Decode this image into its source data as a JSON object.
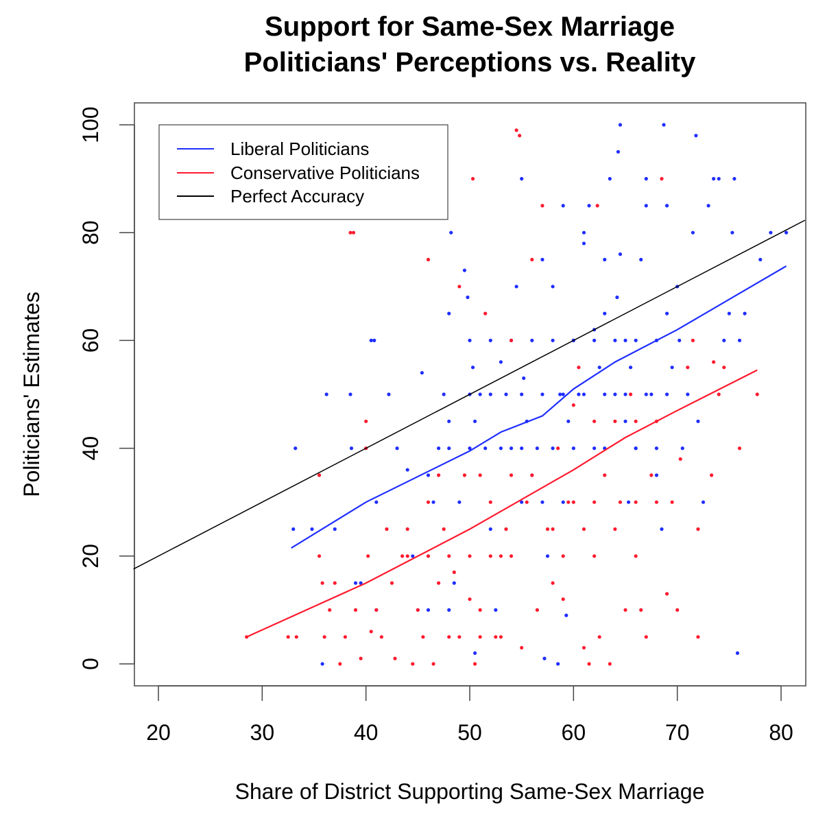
{
  "chart_data": {
    "type": "scatter",
    "title": [
      "Support for Same-Sex Marriage",
      "Politicians' Perceptions vs. Reality"
    ],
    "xlabel": "Share of District Supporting Same-Sex Marriage",
    "ylabel": "Politicians' Estimates",
    "xlim": [
      17.6,
      82.3
    ],
    "ylim": [
      -4,
      104
    ],
    "xticks": [
      "20",
      "30",
      "40",
      "50",
      "60",
      "70",
      "80"
    ],
    "yticks": [
      "0",
      "20",
      "40",
      "60",
      "80",
      "100"
    ],
    "grid": false,
    "legend_position": "top-left",
    "legend": [
      {
        "label": "Liberal Politicians",
        "color": "#1f2eff"
      },
      {
        "label": "Conservative Politicians",
        "color": "#ff1a2e"
      },
      {
        "label": "Perfect Accuracy",
        "color": "#000000"
      }
    ],
    "lines": [
      {
        "name": "Liberal Politicians",
        "color": "#1f2eff",
        "points": [
          [
            32.8,
            21.5
          ],
          [
            40,
            30
          ],
          [
            50,
            39.5
          ],
          [
            53,
            43
          ],
          [
            57,
            46
          ],
          [
            60,
            51
          ],
          [
            64,
            56
          ],
          [
            70,
            62
          ],
          [
            80.5,
            73.8
          ]
        ]
      },
      {
        "name": "Conservative Politicians",
        "color": "#ff1a2e",
        "points": [
          [
            28.5,
            5
          ],
          [
            40,
            15
          ],
          [
            50,
            25
          ],
          [
            55,
            30.5
          ],
          [
            60,
            36
          ],
          [
            65,
            42
          ],
          [
            70,
            47
          ],
          [
            77.7,
            54.5
          ]
        ]
      },
      {
        "name": "Perfect Accuracy",
        "color": "#000000",
        "points": [
          [
            17.6,
            17.6
          ],
          [
            82.3,
            82.3
          ]
        ]
      }
    ],
    "series": [
      {
        "name": "Liberal Politicians",
        "color": "#1f2eff",
        "points": [
          [
            33,
            25
          ],
          [
            33.2,
            40
          ],
          [
            34.8,
            25
          ],
          [
            35.8,
            0
          ],
          [
            36.2,
            50
          ],
          [
            37,
            25
          ],
          [
            38.5,
            50
          ],
          [
            38.6,
            40
          ],
          [
            39,
            15
          ],
          [
            39.5,
            15
          ],
          [
            40.5,
            60
          ],
          [
            40.8,
            60
          ],
          [
            41,
            30
          ],
          [
            41,
            10
          ],
          [
            42.2,
            50
          ],
          [
            43,
            40
          ],
          [
            44,
            36
          ],
          [
            44.5,
            20
          ],
          [
            45,
            10
          ],
          [
            45.4,
            54
          ],
          [
            46,
            35
          ],
          [
            46.5,
            30
          ],
          [
            47,
            40
          ],
          [
            47.5,
            50
          ],
          [
            48,
            45
          ],
          [
            48,
            65
          ],
          [
            48.2,
            80
          ],
          [
            48.5,
            15
          ],
          [
            49,
            30
          ],
          [
            49.5,
            73
          ],
          [
            49.8,
            68
          ],
          [
            50,
            60
          ],
          [
            50.3,
            55
          ],
          [
            50.5,
            2
          ],
          [
            50.5,
            45
          ],
          [
            51,
            50
          ],
          [
            51.5,
            40
          ],
          [
            52,
            25
          ],
          [
            52.5,
            10
          ],
          [
            53,
            56
          ],
          [
            53.5,
            50
          ],
          [
            54,
            40
          ],
          [
            54.5,
            70
          ],
          [
            55,
            90
          ],
          [
            55.2,
            53
          ],
          [
            55.5,
            45
          ],
          [
            56,
            35
          ],
          [
            56.5,
            40
          ],
          [
            57,
            75
          ],
          [
            57.2,
            1
          ],
          [
            57.5,
            20
          ],
          [
            58,
            70
          ],
          [
            58.5,
            0
          ],
          [
            58.7,
            50
          ],
          [
            59,
            85
          ],
          [
            59.3,
            9
          ],
          [
            59.5,
            45
          ],
          [
            60,
            60
          ],
          [
            60.5,
            50
          ],
          [
            61,
            80
          ],
          [
            61,
            78
          ],
          [
            61.5,
            85
          ],
          [
            62,
            40
          ],
          [
            62,
            62
          ],
          [
            62.5,
            55
          ],
          [
            63,
            65
          ],
          [
            63,
            75
          ],
          [
            63.5,
            90
          ],
          [
            64,
            50
          ],
          [
            64.2,
            68
          ],
          [
            64.5,
            100
          ],
          [
            64.3,
            95
          ],
          [
            64.5,
            76
          ],
          [
            65,
            60
          ],
          [
            65,
            45
          ],
          [
            65.3,
            30
          ],
          [
            65.5,
            55
          ],
          [
            66,
            40
          ],
          [
            66.5,
            75
          ],
          [
            67,
            90
          ],
          [
            67,
            85
          ],
          [
            67.5,
            50
          ],
          [
            68,
            35
          ],
          [
            68.5,
            25
          ],
          [
            68.7,
            100
          ],
          [
            69,
            65
          ],
          [
            69,
            85
          ],
          [
            69.5,
            55
          ],
          [
            70,
            70
          ],
          [
            70.2,
            60
          ],
          [
            70.5,
            40
          ],
          [
            71,
            50
          ],
          [
            71.5,
            80
          ],
          [
            71.8,
            98
          ],
          [
            72,
            45
          ],
          [
            72.5,
            30
          ],
          [
            73,
            85
          ],
          [
            73.5,
            90
          ],
          [
            74,
            90
          ],
          [
            74.5,
            60
          ],
          [
            75,
            65
          ],
          [
            75.3,
            80
          ],
          [
            75.5,
            90
          ],
          [
            75.8,
            2
          ],
          [
            76,
            60
          ],
          [
            76.5,
            65
          ],
          [
            78,
            75
          ],
          [
            79,
            80
          ],
          [
            80.5,
            80
          ],
          [
            52,
            60
          ],
          [
            54,
            60
          ],
          [
            56,
            60
          ],
          [
            58,
            60
          ],
          [
            60,
            60
          ],
          [
            62,
            60
          ],
          [
            64,
            60
          ],
          [
            66,
            60
          ],
          [
            68,
            60
          ],
          [
            50,
            50
          ],
          [
            52,
            50
          ],
          [
            55,
            50
          ],
          [
            57,
            50
          ],
          [
            59,
            50
          ],
          [
            61,
            50
          ],
          [
            63,
            50
          ],
          [
            65,
            50
          ],
          [
            67,
            50
          ],
          [
            69,
            50
          ],
          [
            48,
            40
          ],
          [
            50,
            40
          ],
          [
            53,
            40
          ],
          [
            55,
            40
          ],
          [
            58,
            40
          ],
          [
            60,
            40
          ],
          [
            63,
            40
          ],
          [
            66,
            40
          ],
          [
            68,
            40
          ],
          [
            46,
            10
          ],
          [
            48,
            10
          ],
          [
            55,
            30
          ],
          [
            57,
            30
          ],
          [
            59,
            30
          ]
        ]
      },
      {
        "name": "Conservative Politicians",
        "color": "#ff1a2e",
        "points": [
          [
            28.5,
            5
          ],
          [
            32.5,
            5
          ],
          [
            33.3,
            5
          ],
          [
            35.5,
            35
          ],
          [
            35.5,
            20
          ],
          [
            35.8,
            15
          ],
          [
            36,
            5
          ],
          [
            36.5,
            10
          ],
          [
            37,
            15
          ],
          [
            37.5,
            0
          ],
          [
            38,
            5
          ],
          [
            38.5,
            80
          ],
          [
            38.8,
            80
          ],
          [
            39,
            10
          ],
          [
            39.5,
            1
          ],
          [
            40,
            45
          ],
          [
            40,
            40
          ],
          [
            40.2,
            20
          ],
          [
            40.5,
            6
          ],
          [
            41,
            10
          ],
          [
            41.5,
            5
          ],
          [
            42,
            25
          ],
          [
            42.5,
            15
          ],
          [
            42.8,
            1
          ],
          [
            43.5,
            20
          ],
          [
            44,
            25
          ],
          [
            44.5,
            0
          ],
          [
            45,
            10
          ],
          [
            45.5,
            5
          ],
          [
            46,
            75
          ],
          [
            46,
            30
          ],
          [
            46.5,
            0
          ],
          [
            47,
            15
          ],
          [
            47.5,
            25
          ],
          [
            48,
            5
          ],
          [
            48.5,
            17
          ],
          [
            49,
            70
          ],
          [
            49.5,
            35
          ],
          [
            50,
            12
          ],
          [
            50.3,
            90
          ],
          [
            50.5,
            0
          ],
          [
            51,
            10
          ],
          [
            51.5,
            65
          ],
          [
            52,
            30
          ],
          [
            52.5,
            5
          ],
          [
            53,
            20
          ],
          [
            53.5,
            25
          ],
          [
            54,
            60
          ],
          [
            54.5,
            99
          ],
          [
            54.8,
            98
          ],
          [
            55,
            3
          ],
          [
            55.5,
            30
          ],
          [
            56,
            75
          ],
          [
            56.5,
            10
          ],
          [
            57,
            85
          ],
          [
            57.5,
            25
          ],
          [
            58,
            15
          ],
          [
            58.5,
            40
          ],
          [
            59,
            12
          ],
          [
            59.5,
            30
          ],
          [
            60,
            48
          ],
          [
            60.5,
            55
          ],
          [
            61,
            3
          ],
          [
            61.5,
            0
          ],
          [
            62,
            20
          ],
          [
            62.3,
            85
          ],
          [
            62.5,
            5
          ],
          [
            63,
            35
          ],
          [
            63.5,
            0
          ],
          [
            64,
            45
          ],
          [
            64.5,
            30
          ],
          [
            65,
            10
          ],
          [
            65.5,
            50
          ],
          [
            66,
            20
          ],
          [
            66.5,
            10
          ],
          [
            67,
            5
          ],
          [
            67.5,
            35
          ],
          [
            68,
            45
          ],
          [
            68.5,
            90
          ],
          [
            69,
            13
          ],
          [
            69.5,
            30
          ],
          [
            70,
            10
          ],
          [
            70.3,
            38
          ],
          [
            71,
            55
          ],
          [
            71.5,
            60
          ],
          [
            72,
            5
          ],
          [
            72,
            25
          ],
          [
            73.3,
            35
          ],
          [
            73.5,
            56
          ],
          [
            74,
            50
          ],
          [
            74.5,
            55
          ],
          [
            76,
            40
          ],
          [
            77.7,
            50
          ],
          [
            44,
            20
          ],
          [
            46,
            20
          ],
          [
            48,
            20
          ],
          [
            50,
            20
          ],
          [
            52,
            20
          ],
          [
            54,
            20
          ],
          [
            49,
            5
          ],
          [
            51,
            5
          ],
          [
            53,
            5
          ],
          [
            47,
            35
          ],
          [
            51,
            35
          ],
          [
            54,
            35
          ],
          [
            56,
            35
          ],
          [
            60,
            30
          ],
          [
            62,
            30
          ],
          [
            66,
            30
          ],
          [
            68,
            30
          ],
          [
            58,
            25
          ],
          [
            61,
            25
          ],
          [
            64,
            25
          ],
          [
            59,
            20
          ],
          [
            62,
            45
          ],
          [
            66,
            45
          ]
        ]
      }
    ]
  }
}
